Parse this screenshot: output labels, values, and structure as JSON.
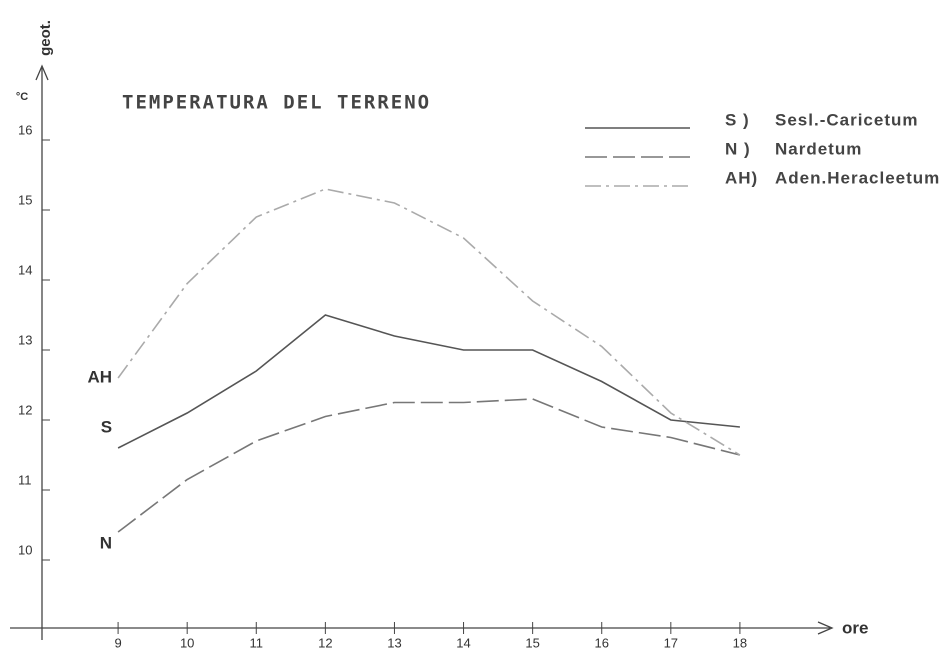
{
  "chart_data": {
    "type": "line",
    "title": "TEMPERATURA DEL TERRENO",
    "ylabel": "geot.",
    "yunit": "°C",
    "xlabel": "ore",
    "x": [
      9,
      10,
      11,
      12,
      13,
      14,
      15,
      16,
      17,
      18
    ],
    "xlim": [
      8,
      19
    ],
    "xticks": [
      9,
      10,
      11,
      12,
      13,
      14,
      15,
      16,
      17,
      18
    ],
    "ylim": [
      9,
      17
    ],
    "yticks": [
      10,
      11,
      12,
      13,
      14,
      15,
      16
    ],
    "legend": "upper right",
    "series": [
      {
        "name": "Sesl.-Caricetum",
        "key": "S )",
        "label": "S",
        "color": "#555555",
        "dash": "none",
        "values": [
          11.6,
          12.1,
          12.7,
          13.5,
          13.2,
          13.0,
          13.0,
          12.55,
          12.0,
          11.9
        ]
      },
      {
        "name": "Nardetum",
        "key": "N )",
        "label": "N",
        "color": "#777777",
        "dash": "22 6",
        "values": [
          10.4,
          11.15,
          11.7,
          12.05,
          12.25,
          12.25,
          12.3,
          11.9,
          11.75,
          11.5
        ]
      },
      {
        "name": "Aden.Heracleetum",
        "key": "AH)",
        "label": "AH",
        "color": "#aaaaaa",
        "dash": "16 5 3 5",
        "values": [
          12.6,
          13.95,
          14.9,
          15.3,
          15.1,
          14.6,
          13.7,
          13.05,
          12.1,
          11.5
        ]
      }
    ]
  }
}
